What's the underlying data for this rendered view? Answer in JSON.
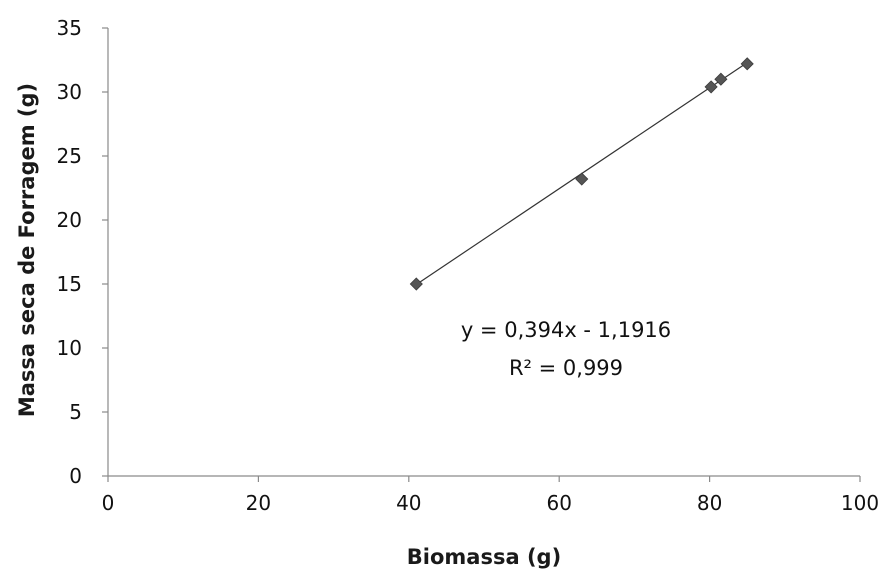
{
  "chart_data": {
    "type": "scatter",
    "title": "",
    "xlabel": "Biomassa (g)",
    "ylabel": "Massa seca de Forragem (g)",
    "xlim": [
      0,
      100
    ],
    "ylim": [
      0,
      35
    ],
    "x_ticks": [
      0,
      20,
      40,
      60,
      80,
      100
    ],
    "y_ticks": [
      0,
      5,
      10,
      15,
      20,
      25,
      30,
      35
    ],
    "grid": false,
    "legend": "none",
    "series": [
      {
        "marker": "diamond",
        "color": "#555555",
        "points": [
          {
            "x": 41,
            "y": 15.0
          },
          {
            "x": 63,
            "y": 23.2
          },
          {
            "x": 80.2,
            "y": 30.4
          },
          {
            "x": 81.5,
            "y": 31.0
          },
          {
            "x": 85,
            "y": 32.2
          }
        ]
      }
    ],
    "trendline": {
      "type": "linear",
      "slope": 0.394,
      "intercept": -1.1916,
      "x_range": [
        41,
        85
      ],
      "color": "#333333"
    },
    "annotations": {
      "equation": "y = 0,394x - 1,1916",
      "r_squared": "R² = 0,999"
    }
  }
}
